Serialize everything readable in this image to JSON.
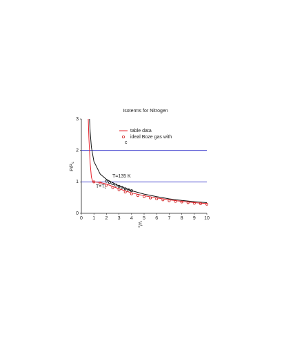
{
  "chart_data": {
    "type": "line",
    "title": "Isoterms for Nitrogen",
    "y_label": {
      "text": "P/P",
      "sub": "c"
    },
    "x_label": {
      "text": "V/",
      "sub": "c"
    },
    "xlim": [
      0,
      10
    ],
    "xticks": [
      0,
      1,
      2,
      3,
      4,
      5,
      6,
      7,
      8,
      9,
      10
    ],
    "ylim": [
      0,
      3
    ],
    "yticks": [
      0,
      1,
      2,
      3
    ],
    "hlines": {
      "values": [
        1,
        2
      ],
      "color": "#3333cc"
    },
    "legend_note": "c",
    "annotations": [
      {
        "text": "T=135 K"
      },
      {
        "text": "T=T",
        "sub": "c"
      }
    ],
    "series": [
      {
        "name": "table data",
        "color": "#e8202a",
        "marker": "line",
        "x": [
          0.55,
          0.6,
          0.7,
          0.8,
          0.9,
          1.0,
          1.5,
          2,
          3,
          4,
          5,
          6,
          7,
          8,
          9,
          10
        ],
        "values": [
          3,
          2.4,
          1.6,
          1.15,
          1.02,
          1.0,
          0.98,
          0.93,
          0.78,
          0.65,
          0.56,
          0.49,
          0.43,
          0.38,
          0.34,
          0.31
        ]
      },
      {
        "color": "#111111",
        "marker": "line",
        "x": [
          0.65,
          0.7,
          0.8,
          1,
          1.5,
          2,
          3,
          4,
          5,
          6,
          7,
          8,
          9,
          10
        ],
        "values": [
          3,
          2.6,
          2.1,
          1.65,
          1.25,
          1.08,
          0.87,
          0.72,
          0.61,
          0.53,
          0.46,
          0.41,
          0.37,
          0.34
        ]
      },
      {
        "name": "ideal Boze gas with",
        "color": "#d02020",
        "marker": "circle",
        "x": [
          1,
          1.5,
          2,
          2.5,
          3,
          3.5,
          4,
          4.5,
          5,
          5.5,
          6,
          6.5,
          7,
          7.5,
          8,
          8.5,
          9,
          9.5,
          10
        ],
        "values": [
          1.0,
          0.97,
          0.9,
          0.82,
          0.75,
          0.68,
          0.62,
          0.57,
          0.53,
          0.49,
          0.46,
          0.43,
          0.4,
          0.38,
          0.36,
          0.34,
          0.32,
          0.31,
          0.29
        ]
      },
      {
        "color": "#111111",
        "marker": "circle",
        "x": [
          2,
          2.25,
          2.5,
          2.75,
          3,
          3.25,
          3.5,
          3.75,
          4
        ],
        "values": [
          1.02,
          0.98,
          0.94,
          0.9,
          0.86,
          0.82,
          0.78,
          0.75,
          0.72
        ]
      }
    ]
  }
}
